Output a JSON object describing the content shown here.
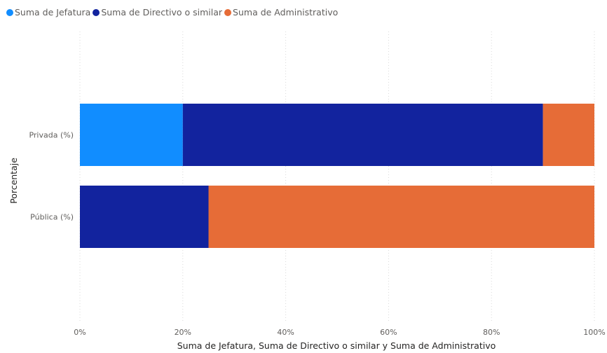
{
  "chart_data": {
    "type": "bar",
    "orientation": "horizontal",
    "stacked": "100%",
    "categories": [
      "Privada (%)",
      "Pública (%)"
    ],
    "series": [
      {
        "name": "Suma de Jefatura",
        "color": "#118dff",
        "values": [
          20,
          0
        ]
      },
      {
        "name": "Suma de Directivo o similar",
        "color": "#12239e",
        "values": [
          70,
          25
        ]
      },
      {
        "name": "Suma de Administrativo",
        "color": "#e66c37",
        "values": [
          10,
          75
        ]
      }
    ],
    "xlabel": "Suma de Jefatura, Suma de Directivo o similar y Suma de Administrativo",
    "ylabel": "Porcentaje",
    "xlim": [
      0,
      100
    ],
    "x_ticks": [
      "0%",
      "20%",
      "40%",
      "60%",
      "80%",
      "100%"
    ],
    "grid": true,
    "legend_position": "top-left"
  }
}
